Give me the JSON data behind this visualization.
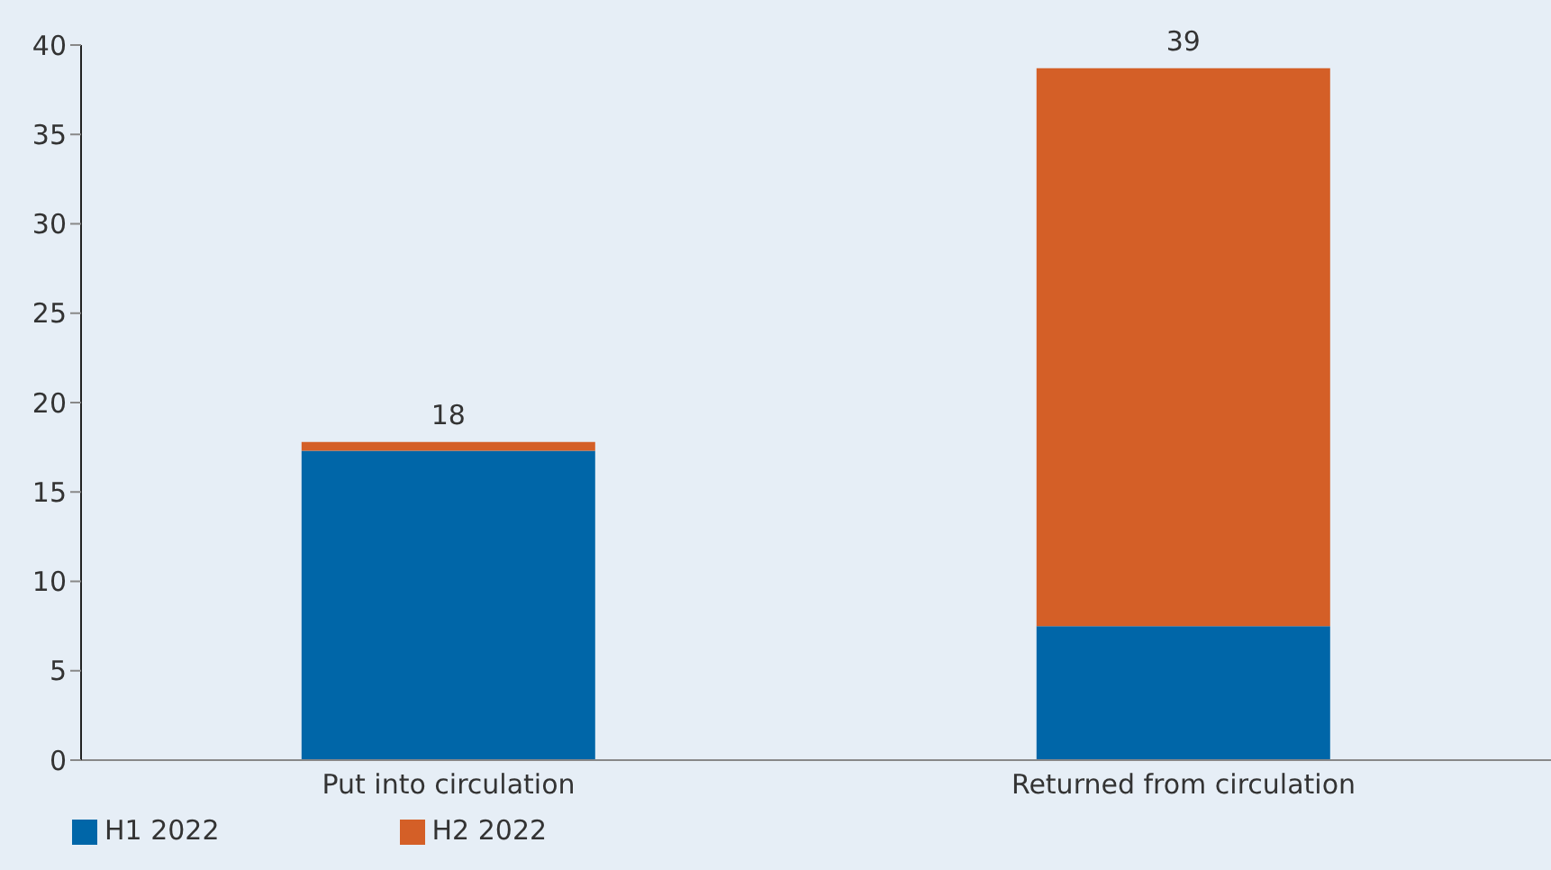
{
  "chart_data": {
    "type": "bar",
    "stacked": true,
    "categories": [
      "Put into circulation",
      "Returned from circulation"
    ],
    "series": [
      {
        "name": "H1 2022",
        "color": "#0066a8",
        "values": [
          17.3,
          7.5
        ]
      },
      {
        "name": "H2 2022",
        "color": "#d45f27",
        "values": [
          0.5,
          31.2
        ]
      }
    ],
    "totals": [
      "18",
      "39"
    ],
    "ylim": [
      0,
      40
    ],
    "yticks": [
      0,
      5,
      10,
      15,
      20,
      25,
      30,
      35,
      40
    ],
    "grid": false,
    "legend": "bottom left"
  }
}
